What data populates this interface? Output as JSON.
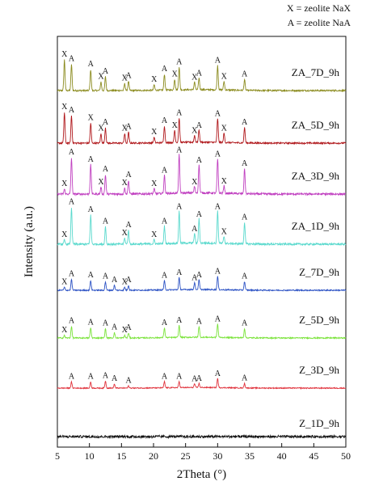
{
  "legend": {
    "line1": "X = zeolite NaX",
    "line2": "A = zeolite NaA"
  },
  "chart_data": {
    "type": "line",
    "title": "",
    "xlabel": "2Theta (°)",
    "ylabel": "Intensity (a.u.)",
    "xlim": [
      5,
      50
    ],
    "xticks": [
      5,
      10,
      15,
      20,
      25,
      30,
      35,
      40,
      45,
      50
    ],
    "yticks_shown": false,
    "grid": false,
    "legend_placement": "top-right",
    "series": [
      {
        "name": "ZA_7D_9h",
        "color": "#8b8b1e",
        "peaks": [
          {
            "x": 6.1,
            "h": 1.0,
            "label": "X"
          },
          {
            "x": 7.2,
            "h": 0.85,
            "label": "A"
          },
          {
            "x": 10.2,
            "h": 0.68,
            "label": "A"
          },
          {
            "x": 11.8,
            "h": 0.28,
            "label": "X"
          },
          {
            "x": 12.5,
            "h": 0.45,
            "label": "A"
          },
          {
            "x": 15.5,
            "h": 0.22,
            "label": "X"
          },
          {
            "x": 16.1,
            "h": 0.3,
            "label": "A"
          },
          {
            "x": 20.1,
            "h": 0.18,
            "label": "X"
          },
          {
            "x": 21.7,
            "h": 0.52,
            "label": "A"
          },
          {
            "x": 23.3,
            "h": 0.35,
            "label": "X"
          },
          {
            "x": 24.0,
            "h": 0.75,
            "label": "A"
          },
          {
            "x": 26.4,
            "h": 0.25,
            "label": "X"
          },
          {
            "x": 27.1,
            "h": 0.38,
            "label": "A"
          },
          {
            "x": 30.0,
            "h": 0.8,
            "label": "A"
          },
          {
            "x": 31.0,
            "h": 0.28,
            "label": "X"
          },
          {
            "x": 34.2,
            "h": 0.35,
            "label": "A"
          }
        ]
      },
      {
        "name": "ZA_5D_9h",
        "color": "#b0171b",
        "peaks": [
          {
            "x": 6.1,
            "h": 1.0,
            "label": "X"
          },
          {
            "x": 7.2,
            "h": 0.9,
            "label": "A"
          },
          {
            "x": 10.2,
            "h": 0.65,
            "label": "X"
          },
          {
            "x": 11.8,
            "h": 0.3,
            "label": "X"
          },
          {
            "x": 12.5,
            "h": 0.5,
            "label": "A"
          },
          {
            "x": 15.5,
            "h": 0.3,
            "label": "X"
          },
          {
            "x": 16.1,
            "h": 0.35,
            "label": "A"
          },
          {
            "x": 20.1,
            "h": 0.18,
            "label": "X"
          },
          {
            "x": 21.7,
            "h": 0.55,
            "label": "A"
          },
          {
            "x": 23.3,
            "h": 0.4,
            "label": "X"
          },
          {
            "x": 24.0,
            "h": 0.8,
            "label": "A"
          },
          {
            "x": 26.4,
            "h": 0.22,
            "label": "X"
          },
          {
            "x": 27.1,
            "h": 0.4,
            "label": "A"
          },
          {
            "x": 30.0,
            "h": 0.78,
            "label": "A"
          },
          {
            "x": 31.0,
            "h": 0.3,
            "label": "X"
          },
          {
            "x": 34.2,
            "h": 0.5,
            "label": "A"
          }
        ]
      },
      {
        "name": "ZA_3D_9h",
        "color": "#c03fc0",
        "peaks": [
          {
            "x": 6.1,
            "h": 0.12,
            "label": "X"
          },
          {
            "x": 7.2,
            "h": 0.9,
            "label": "A"
          },
          {
            "x": 10.2,
            "h": 0.72,
            "label": "A"
          },
          {
            "x": 11.8,
            "h": 0.16,
            "label": "X"
          },
          {
            "x": 12.5,
            "h": 0.48,
            "label": "A"
          },
          {
            "x": 15.5,
            "h": 0.14,
            "label": "X"
          },
          {
            "x": 16.1,
            "h": 0.34,
            "label": "A"
          },
          {
            "x": 20.1,
            "h": 0.12,
            "label": "X"
          },
          {
            "x": 21.7,
            "h": 0.45,
            "label": "A"
          },
          {
            "x": 24.0,
            "h": 0.95,
            "label": "A"
          },
          {
            "x": 26.4,
            "h": 0.16,
            "label": "X"
          },
          {
            "x": 27.1,
            "h": 0.7,
            "label": "A"
          },
          {
            "x": 30.0,
            "h": 0.85,
            "label": "A"
          },
          {
            "x": 31.0,
            "h": 0.18,
            "label": "X"
          },
          {
            "x": 34.2,
            "h": 0.62,
            "label": "A"
          }
        ]
      },
      {
        "name": "ZA_1D_9h",
        "color": "#59d9cd",
        "peaks": [
          {
            "x": 6.1,
            "h": 0.1,
            "label": "X"
          },
          {
            "x": 7.2,
            "h": 0.95,
            "label": "A"
          },
          {
            "x": 10.2,
            "h": 0.75,
            "label": "A"
          },
          {
            "x": 12.5,
            "h": 0.45,
            "label": "A"
          },
          {
            "x": 15.5,
            "h": 0.15,
            "label": "X"
          },
          {
            "x": 16.1,
            "h": 0.35,
            "label": "A"
          },
          {
            "x": 20.1,
            "h": 0.1,
            "label": "X"
          },
          {
            "x": 21.7,
            "h": 0.45,
            "label": "A"
          },
          {
            "x": 24.0,
            "h": 0.82,
            "label": "A"
          },
          {
            "x": 26.4,
            "h": 0.25,
            "label": "A"
          },
          {
            "x": 27.1,
            "h": 0.62,
            "label": "A"
          },
          {
            "x": 30.0,
            "h": 0.82,
            "label": "A"
          },
          {
            "x": 31.0,
            "h": 0.18,
            "label": "X"
          },
          {
            "x": 34.2,
            "h": 0.55,
            "label": "A"
          }
        ]
      },
      {
        "name": "Z_7D_9h",
        "color": "#2c52c4",
        "peaks": [
          {
            "x": 6.1,
            "h": 0.12,
            "label": "X"
          },
          {
            "x": 7.2,
            "h": 0.45,
            "label": "A"
          },
          {
            "x": 10.2,
            "h": 0.4,
            "label": "A"
          },
          {
            "x": 12.5,
            "h": 0.35,
            "label": "A"
          },
          {
            "x": 13.9,
            "h": 0.2,
            "label": "A"
          },
          {
            "x": 15.5,
            "h": 0.12,
            "label": "X"
          },
          {
            "x": 16.1,
            "h": 0.2,
            "label": "A"
          },
          {
            "x": 21.7,
            "h": 0.38,
            "label": "A"
          },
          {
            "x": 24.0,
            "h": 0.5,
            "label": "A"
          },
          {
            "x": 26.4,
            "h": 0.28,
            "label": "A"
          },
          {
            "x": 27.1,
            "h": 0.4,
            "label": "A"
          },
          {
            "x": 30.0,
            "h": 0.55,
            "label": "A"
          },
          {
            "x": 34.2,
            "h": 0.35,
            "label": "A"
          }
        ]
      },
      {
        "name": "Z_5D_9h",
        "color": "#7ae33a",
        "peaks": [
          {
            "x": 6.1,
            "h": 0.1,
            "label": "X"
          },
          {
            "x": 7.2,
            "h": 0.48,
            "label": "A"
          },
          {
            "x": 10.2,
            "h": 0.42,
            "label": "A"
          },
          {
            "x": 12.5,
            "h": 0.38,
            "label": "A"
          },
          {
            "x": 13.9,
            "h": 0.22,
            "label": "A"
          },
          {
            "x": 15.5,
            "h": 0.1,
            "label": "X"
          },
          {
            "x": 16.1,
            "h": 0.2,
            "label": "A"
          },
          {
            "x": 21.7,
            "h": 0.4,
            "label": "A"
          },
          {
            "x": 24.0,
            "h": 0.5,
            "label": "A"
          },
          {
            "x": 27.1,
            "h": 0.45,
            "label": "A"
          },
          {
            "x": 30.0,
            "h": 0.55,
            "label": "A"
          },
          {
            "x": 34.2,
            "h": 0.38,
            "label": "A"
          }
        ]
      },
      {
        "name": "Z_3D_9h",
        "color": "#e0303a",
        "peaks": [
          {
            "x": 7.2,
            "h": 0.3,
            "label": "A"
          },
          {
            "x": 10.2,
            "h": 0.3,
            "label": "A"
          },
          {
            "x": 12.5,
            "h": 0.35,
            "label": "A"
          },
          {
            "x": 13.9,
            "h": 0.2,
            "label": "A"
          },
          {
            "x": 16.1,
            "h": 0.1,
            "label": "A"
          },
          {
            "x": 21.7,
            "h": 0.3,
            "label": "A"
          },
          {
            "x": 24.0,
            "h": 0.3,
            "label": "A"
          },
          {
            "x": 26.4,
            "h": 0.18,
            "label": "A"
          },
          {
            "x": 27.1,
            "h": 0.2,
            "label": "A"
          },
          {
            "x": 30.0,
            "h": 0.45,
            "label": "A"
          },
          {
            "x": 34.2,
            "h": 0.22,
            "label": "A"
          }
        ]
      },
      {
        "name": "Z_1D_9h",
        "color": "#111111",
        "peaks": []
      }
    ]
  }
}
